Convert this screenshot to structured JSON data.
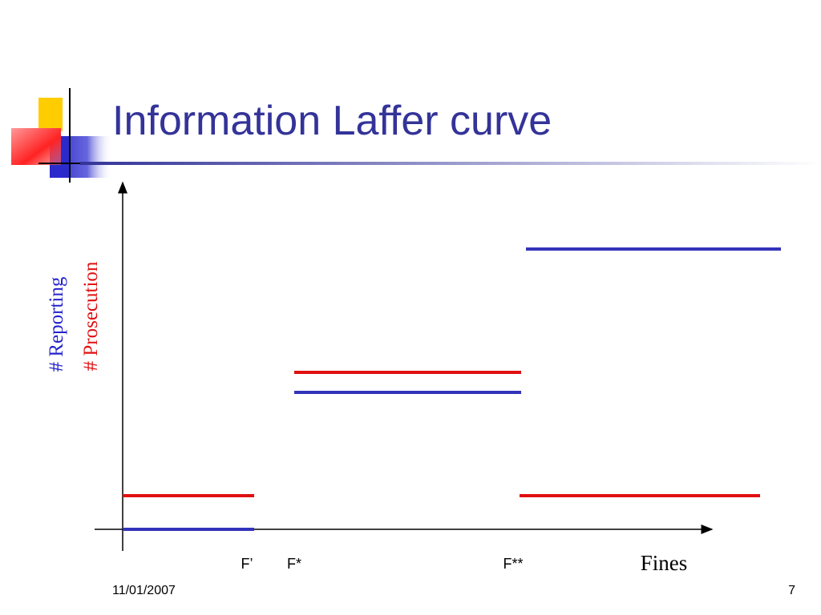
{
  "title": "Information Laffer curve",
  "y_labels": [
    "# Reporting",
    "# Prosecution"
  ],
  "x_label": "Fines",
  "x_markers": [
    "F’",
    "F*",
    "F**"
  ],
  "footer": {
    "date": "11/01/2007",
    "page": "7"
  }
}
